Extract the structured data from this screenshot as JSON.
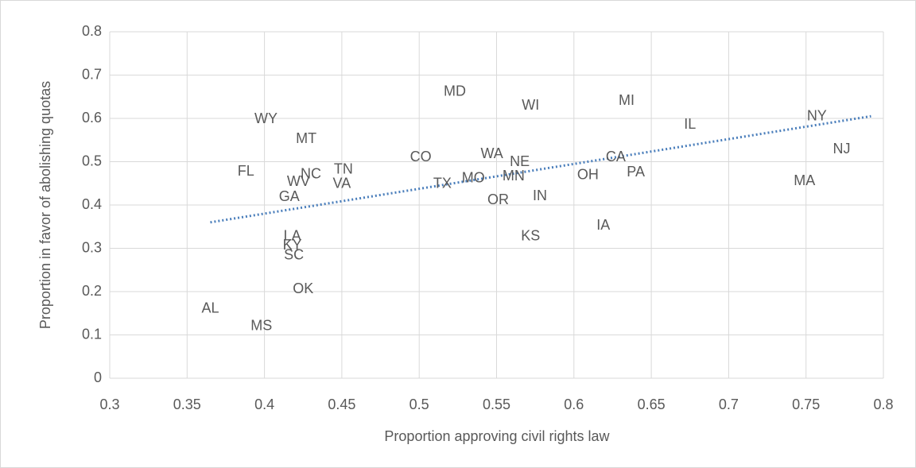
{
  "chart_data": {
    "type": "scatter",
    "x_label": "Proportion approving civil rights law",
    "y_label": "Proportion in favor of abolishing quotas",
    "labels": [
      "AL",
      "MS",
      "OK",
      "SC",
      "KY",
      "LA",
      "GA",
      "WV",
      "NC",
      "TN",
      "VA",
      "FL",
      "WY",
      "MT",
      "CO",
      "TX",
      "MO",
      "MD",
      "WA",
      "NE",
      "MN",
      "OR",
      "WI",
      "IN",
      "KS",
      "OH",
      "CA",
      "PA",
      "IA",
      "MI",
      "IL",
      "NY",
      "NJ",
      "MA"
    ],
    "x": [
      0.365,
      0.398,
      0.425,
      0.419,
      0.418,
      0.418,
      0.416,
      0.422,
      0.43,
      0.451,
      0.45,
      0.388,
      0.401,
      0.427,
      0.501,
      0.515,
      0.535,
      0.523,
      0.547,
      0.565,
      0.561,
      0.551,
      0.572,
      0.578,
      0.572,
      0.609,
      0.627,
      0.64,
      0.619,
      0.634,
      0.675,
      0.757,
      0.773,
      0.749
    ],
    "y": [
      0.16,
      0.12,
      0.205,
      0.283,
      0.306,
      0.327,
      0.418,
      0.453,
      0.47,
      0.481,
      0.448,
      0.477,
      0.598,
      0.552,
      0.51,
      0.448,
      0.461,
      0.661,
      0.517,
      0.499,
      0.466,
      0.411,
      0.629,
      0.42,
      0.327,
      0.468,
      0.51,
      0.475,
      0.352,
      0.64,
      0.585,
      0.604,
      0.528,
      0.455
    ],
    "color": "#595959",
    "trendline": {
      "x": [
        0.365,
        0.792
      ],
      "y": [
        0.36,
        0.605
      ],
      "color": "#4a7ebb"
    },
    "xlim": [
      0.3,
      0.8
    ],
    "xticks": [
      0.3,
      0.35,
      0.4,
      0.45,
      0.5,
      0.55,
      0.6,
      0.65,
      0.7,
      0.75,
      0.8
    ],
    "ylim": [
      0,
      0.8
    ],
    "yticks": [
      0,
      0.1,
      0.2,
      0.3,
      0.4,
      0.5,
      0.6,
      0.7,
      0.8
    ],
    "grid": true
  }
}
